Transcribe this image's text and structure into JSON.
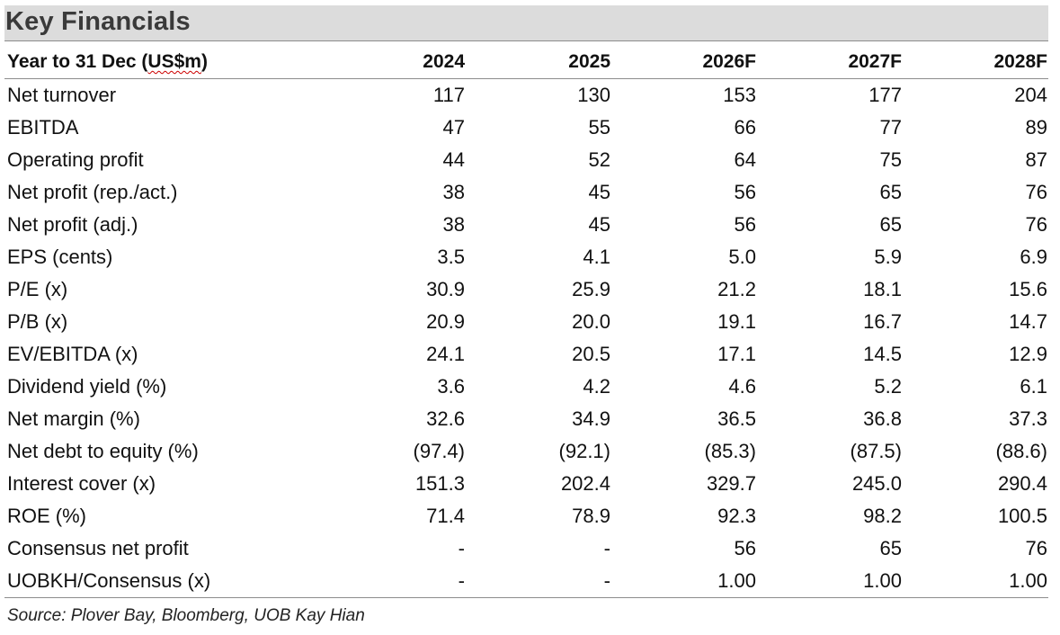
{
  "title": "Key Financials",
  "table": {
    "header": {
      "label_prefix": "Year to 31 Dec (",
      "label_unit": "US$m",
      "label_suffix": ")",
      "years": [
        "2024",
        "2025",
        "2026F",
        "2027F",
        "2028F"
      ]
    },
    "rows": [
      {
        "label": "Net turnover",
        "values": [
          "117",
          "130",
          "153",
          "177",
          "204"
        ]
      },
      {
        "label": "EBITDA",
        "values": [
          "47",
          "55",
          "66",
          "77",
          "89"
        ]
      },
      {
        "label": "Operating profit",
        "values": [
          "44",
          "52",
          "64",
          "75",
          "87"
        ]
      },
      {
        "label": "Net profit (rep./act.)",
        "values": [
          "38",
          "45",
          "56",
          "65",
          "76"
        ]
      },
      {
        "label": "Net profit (adj.)",
        "values": [
          "38",
          "45",
          "56",
          "65",
          "76"
        ]
      },
      {
        "label": "EPS (cents)",
        "values": [
          "3.5",
          "4.1",
          "5.0",
          "5.9",
          "6.9"
        ]
      },
      {
        "label": "P/E (x)",
        "values": [
          "30.9",
          "25.9",
          "21.2",
          "18.1",
          "15.6"
        ]
      },
      {
        "label": "P/B (x)",
        "values": [
          "20.9",
          "20.0",
          "19.1",
          "16.7",
          "14.7"
        ]
      },
      {
        "label": "EV/EBITDA (x)",
        "values": [
          "24.1",
          "20.5",
          "17.1",
          "14.5",
          "12.9"
        ]
      },
      {
        "label": "Dividend yield (%)",
        "values": [
          "3.6",
          "4.2",
          "4.6",
          "5.2",
          "6.1"
        ]
      },
      {
        "label": "Net margin (%)",
        "values": [
          "32.6",
          "34.9",
          "36.5",
          "36.8",
          "37.3"
        ]
      },
      {
        "label": "Net debt to equity (%)",
        "values": [
          "(97.4)",
          "(92.1)",
          "(85.3)",
          "(87.5)",
          "(88.6)"
        ]
      },
      {
        "label": "Interest cover (x)",
        "values": [
          "151.3",
          "202.4",
          "329.7",
          "245.0",
          "290.4"
        ]
      },
      {
        "label": "ROE (%)",
        "values": [
          "71.4",
          "78.9",
          "92.3",
          "98.2",
          "100.5"
        ]
      },
      {
        "label": "Consensus net profit",
        "values": [
          "-",
          "-",
          "56",
          "65",
          "76"
        ]
      },
      {
        "label": "UOBKH/Consensus (x)",
        "values": [
          "-",
          "-",
          "1.00",
          "1.00",
          "1.00"
        ]
      }
    ]
  },
  "source": "Source: Plover Bay, Bloomberg, UOB Kay Hian"
}
